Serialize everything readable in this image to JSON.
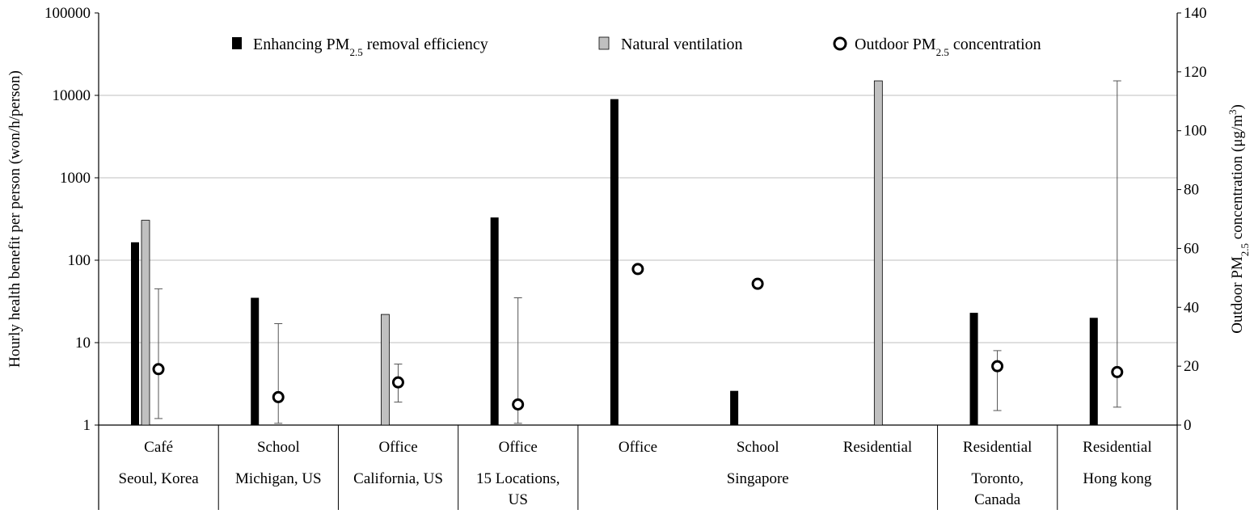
{
  "chart_data": {
    "type": "bar",
    "ylabel_left": "Hourly health benefit per person (won/h/person)",
    "ylabel_right": "Outdoor PM2.5 concentration (μg/m3)",
    "y_left_scale": "log",
    "y_left_range": [
      1,
      100000
    ],
    "y_left_ticks": [
      "1",
      "10",
      "100",
      "1000",
      "10000",
      "100000"
    ],
    "y_right_range": [
      0,
      140
    ],
    "y_right_ticks": [
      "0",
      "20",
      "40",
      "60",
      "80",
      "100",
      "120",
      "140"
    ],
    "grid": "horizontal",
    "legend_position": "top",
    "legend": {
      "enhancing": "Enhancing PM2.5 removal efficiency",
      "natural": "Natural ventilation",
      "outdoor": "Outdoor PM2.5 concentration"
    },
    "colors": {
      "enhancing": "#000000",
      "natural": "#c0c0c0",
      "grid": "#bfbfbf"
    },
    "categories": [
      {
        "building": "Café",
        "enhancing": 165,
        "natural": 305,
        "outdoor": 19,
        "outdoor_err": [
          1.2,
          45
        ]
      },
      {
        "building": "School",
        "enhancing": 35,
        "natural": null,
        "outdoor": 9.5,
        "outdoor_err": [
          1.05,
          17
        ]
      },
      {
        "building": "Office",
        "enhancing": null,
        "natural": 22,
        "outdoor": 14.5,
        "outdoor_err": [
          1.9,
          5.5
        ]
      },
      {
        "building": "Office",
        "enhancing": 330,
        "natural": null,
        "outdoor": 7,
        "outdoor_err": [
          1.05,
          35
        ]
      },
      {
        "building": "Office",
        "enhancing": 9000,
        "natural": null,
        "outdoor": 53,
        "outdoor_err": null
      },
      {
        "building": "School",
        "enhancing": 2.6,
        "natural": null,
        "outdoor": 48,
        "outdoor_err": null
      },
      {
        "building": "Residential",
        "enhancing": null,
        "natural": 15000,
        "outdoor": null,
        "outdoor_err": null
      },
      {
        "building": "Residential",
        "enhancing": 23,
        "natural": null,
        "outdoor": 20,
        "outdoor_err": [
          1.5,
          8
        ]
      },
      {
        "building": "Residential",
        "enhancing": 20,
        "natural": null,
        "outdoor": 18,
        "outdoor_err": [
          1.65,
          15000
        ]
      }
    ],
    "locations": [
      {
        "label": "Seoul, Korea",
        "span": [
          0,
          0
        ]
      },
      {
        "label": "Michigan, US",
        "span": [
          1,
          1
        ]
      },
      {
        "label": "California, US",
        "span": [
          2,
          2
        ]
      },
      {
        "label": "15 Locations,\nUS",
        "span": [
          3,
          3
        ]
      },
      {
        "label": "Singapore",
        "span": [
          4,
          6
        ]
      },
      {
        "label": "Toronto,\nCanada",
        "span": [
          7,
          7
        ]
      },
      {
        "label": "Hong kong",
        "span": [
          8,
          8
        ]
      }
    ]
  }
}
